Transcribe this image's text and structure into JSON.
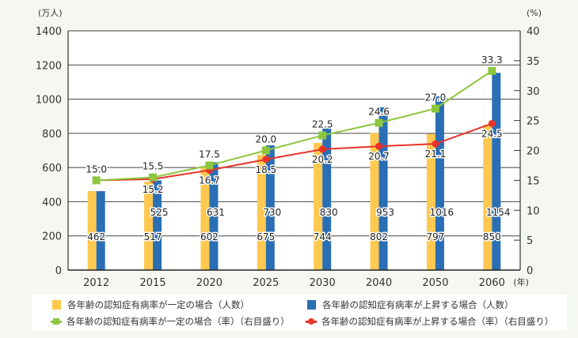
{
  "chart_data": {
    "type": "bar",
    "title": "",
    "categories": [
      "2012",
      "2015",
      "2020",
      "2025",
      "2030",
      "2040",
      "2050",
      "2060"
    ],
    "x_unit_label": "(年)",
    "y_left": {
      "label": "(万人)",
      "range": [
        0,
        1400
      ],
      "ticks": [
        0,
        200,
        400,
        600,
        800,
        1000,
        1200,
        1400
      ]
    },
    "y_right": {
      "label": "(%)",
      "range": [
        0,
        40
      ],
      "ticks": [
        0,
        5,
        10,
        15,
        20,
        25,
        30,
        35,
        40
      ]
    },
    "grid": true,
    "series": [
      {
        "name": "各年齢の認知症有病率が一定の場合（人数）",
        "kind": "bar",
        "axis": "left",
        "color": "#ffc84f",
        "values": [
          462,
          517,
          602,
          675,
          744,
          802,
          797,
          850
        ],
        "labels": [
          "462",
          "517",
          "602",
          "675",
          "744",
          "802",
          "797",
          "850"
        ]
      },
      {
        "name": "各年齢の認知症有病率が上昇する場合（人数）",
        "kind": "bar",
        "axis": "left",
        "color": "#2a6fb5",
        "values": [
          462,
          525,
          631,
          730,
          830,
          953,
          1016,
          1154
        ],
        "labels": [
          "",
          "525",
          "631",
          "730",
          "830",
          "953",
          "1016",
          "1154"
        ]
      },
      {
        "name": "各年齢の認知症有病率が一定の場合（率）（右目盛り）",
        "kind": "line",
        "marker": "square",
        "axis": "right",
        "color": "#8dc63f",
        "values": [
          15.0,
          15.5,
          17.5,
          20.0,
          22.5,
          24.6,
          27.0,
          33.3
        ],
        "labels": [
          "15.0",
          "15.5",
          "17.5",
          "20.0",
          "22.5",
          "24.6",
          "27.0",
          "33.3"
        ]
      },
      {
        "name": "各年齢の認知症有病率が上昇する場合（率）（右目盛り）",
        "kind": "line",
        "marker": "circle",
        "axis": "right",
        "color": "#e8332a",
        "values": [
          15.0,
          15.2,
          16.7,
          18.5,
          20.2,
          20.7,
          21.1,
          24.5
        ],
        "labels": [
          "",
          "15.2",
          "16.7",
          "18.5",
          "20.2",
          "20.7",
          "21.1",
          "24.5"
        ]
      }
    ],
    "legend_position": "bottom"
  },
  "legend": {
    "items": [
      {
        "label": "各年齢の認知症有病率が一定の場合（人数）",
        "color": "#ffc84f"
      },
      {
        "label": "各年齢の認知症有病率が上昇する場合（人数）",
        "color": "#2a6fb5"
      },
      {
        "label": "各年齢の認知症有病率が一定の場合（率）（右目盛り）",
        "color": "#8dc63f"
      },
      {
        "label": "各年齢の認知症有病率が上昇する場合（率）（右目盛り）",
        "color": "#e8332a"
      }
    ]
  }
}
